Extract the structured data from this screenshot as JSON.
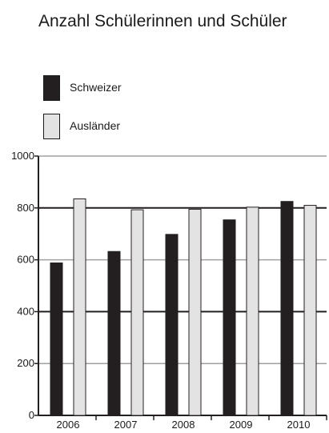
{
  "colors": {
    "schweizer": "#231f20",
    "auslaender": "#e3e3e3",
    "bar_border": "#231f20",
    "grid_dark": "#231f20",
    "grid_light": "#a0a0a0"
  },
  "chart_data": {
    "type": "bar",
    "title": "Anzahl Schülerinnen und Schüler",
    "categories": [
      "2006",
      "2007",
      "2008",
      "2009",
      "2010"
    ],
    "series": [
      {
        "name": "Schweizer",
        "values": [
          588,
          632,
          698,
          754,
          825
        ]
      },
      {
        "name": "Ausländer",
        "values": [
          835,
          793,
          795,
          803,
          810
        ]
      }
    ],
    "yticks": [
      "0",
      "200",
      "400",
      "600",
      "800",
      "1000"
    ],
    "ylim": [
      0,
      1000
    ],
    "xlabel": "",
    "ylabel": "",
    "legend": "top-left",
    "grid": true
  }
}
